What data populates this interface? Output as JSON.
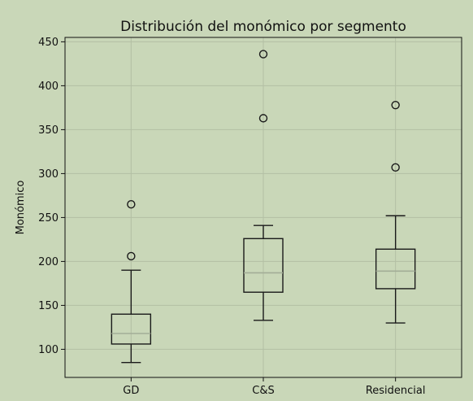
{
  "chart_data": {
    "type": "box",
    "title": "Distribución del monómico por segmento",
    "xlabel": "",
    "ylabel": "Monómico",
    "ylim": [
      68,
      455
    ],
    "yticks": [
      100,
      150,
      200,
      250,
      300,
      350,
      400,
      450
    ],
    "grid": true,
    "categories": [
      "GD",
      "C&S",
      "Residencial"
    ],
    "boxes": [
      {
        "category": "GD",
        "whisker_low": 85,
        "q1": 106,
        "median": 118,
        "q3": 140,
        "whisker_high": 190,
        "outliers": [
          206,
          265
        ]
      },
      {
        "category": "C&S",
        "whisker_low": 133,
        "q1": 165,
        "median": 187,
        "q3": 226,
        "whisker_high": 241,
        "outliers": [
          363,
          436
        ]
      },
      {
        "category": "Residencial",
        "whisker_low": 130,
        "q1": 169,
        "median": 189,
        "q3": 214,
        "whisker_high": 252,
        "outliers": [
          307,
          378
        ]
      }
    ],
    "colors": {
      "background": "#c9d7b8",
      "box": "#1a1a1a",
      "median": "#a3ad97",
      "grid": "#b3bfa4"
    }
  }
}
